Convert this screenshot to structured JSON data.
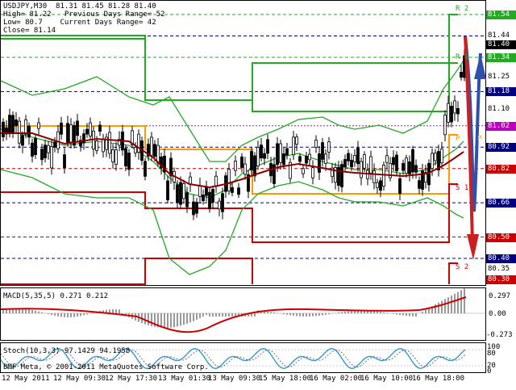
{
  "header": {
    "symbol": "USDJPY,M30  81.31 81.45 81.28 81.40",
    "high": "High= 81.22   Previous Days Range= 52",
    "low": "Low= 80.7    Current Days Range= 42",
    "close": "Close= 81.14"
  },
  "pivot_labels": {
    "r2": "R 2",
    "r1": "R 1",
    "pivot": "P",
    "s1": "S 1",
    "s2": "S 2"
  },
  "price_scale": [
    {
      "text": "81.54",
      "style": "box",
      "color": "#22aa22"
    },
    {
      "text": "81.44",
      "style": "plain"
    },
    {
      "text": "81.40",
      "style": "box",
      "color": "#000000"
    },
    {
      "text": "81.34",
      "style": "box",
      "color": "#22aa22"
    },
    {
      "text": "81.25",
      "style": "plain"
    },
    {
      "text": "81.18",
      "style": "box",
      "color": "#000080"
    },
    {
      "text": "81.10",
      "style": "plain"
    },
    {
      "text": "81.02",
      "style": "box",
      "color": "#c000c0"
    },
    {
      "text": "80.92",
      "style": "box",
      "color": "#000080"
    },
    {
      "text": "80.82",
      "style": "box",
      "color": "#cc0000"
    },
    {
      "text": "80.66",
      "style": "box",
      "color": "#000080"
    },
    {
      "text": "80.50",
      "style": "box",
      "color": "#cc0000"
    },
    {
      "text": "80.40",
      "style": "box",
      "color": "#000080"
    },
    {
      "text": "80.35",
      "style": "plain"
    },
    {
      "text": "80.30",
      "style": "box",
      "color": "#cc0000"
    }
  ],
  "macd": {
    "label": "MACD(5,35,5) 0.271 0.212",
    "scale": [
      "0.297",
      "0.00",
      "-0.273"
    ]
  },
  "stoch": {
    "label": "Stoch(10,3,3) 97.1429 94.1958",
    "scale": [
      "100",
      "80",
      "20",
      "0"
    ]
  },
  "copyright": "BMF Meta, © 2001-2011 MetaQuotes Software Corp.",
  "time_labels": [
    "12 May 2011",
    "12 May 09:30",
    "12 May 17:30",
    "13 May 01:30",
    "13 May 09:30",
    "15 May 18:00",
    "16 May 02:00",
    "16 May 10:00",
    "16 May 18:00"
  ],
  "colors": {
    "up_candle": "#000000",
    "bollinger": "#22aa22",
    "ma": "#8b0000",
    "resistance": "#22aa22",
    "pivot": "#ff9900",
    "support": "#cc0000",
    "macd_line": "#cc0000",
    "macd_hist": "#999999",
    "stoch_main": "#3399cc",
    "arrow_up": "#3050b0",
    "arrow_down": "#cc2020"
  }
}
